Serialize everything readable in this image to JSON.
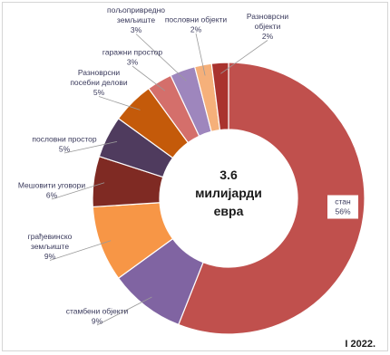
{
  "chart_data": {
    "type": "pie",
    "center_label": [
      "3.6",
      "милијарди",
      "евра"
    ],
    "period": "I 2022.",
    "slices": [
      {
        "label": [
          "стан",
          "56%"
        ],
        "value": 56,
        "color": "#c0504d"
      },
      {
        "label": [
          "стамбени објекти",
          "9%"
        ],
        "value": 9,
        "color": "#8064a2"
      },
      {
        "label": [
          "грађевинско",
          "земљиште",
          "9%"
        ],
        "value": 9,
        "color": "#f79646"
      },
      {
        "label": [
          "Мешовити уговори",
          "6%"
        ],
        "value": 6,
        "color": "#7f2a23"
      },
      {
        "label": [
          "пословни простор",
          "5%"
        ],
        "value": 5,
        "color": "#4f3b5e"
      },
      {
        "label": [
          "Разноврсни",
          "посебни делови",
          "5%"
        ],
        "value": 5,
        "color": "#c45a0a"
      },
      {
        "label": [
          "гаражни простор",
          "3%"
        ],
        "value": 3,
        "color": "#d46f6b"
      },
      {
        "label": [
          "пољопривредно",
          "земљиште",
          "3%"
        ],
        "value": 3,
        "color": "#9e86bd"
      },
      {
        "label": [
          "пословни објекти",
          "2%"
        ],
        "value": 2,
        "color": "#f5b07a"
      },
      {
        "label": [
          "Разноврсни",
          "објекти",
          "2%"
        ],
        "value": 2,
        "color": "#a9332e"
      }
    ]
  }
}
